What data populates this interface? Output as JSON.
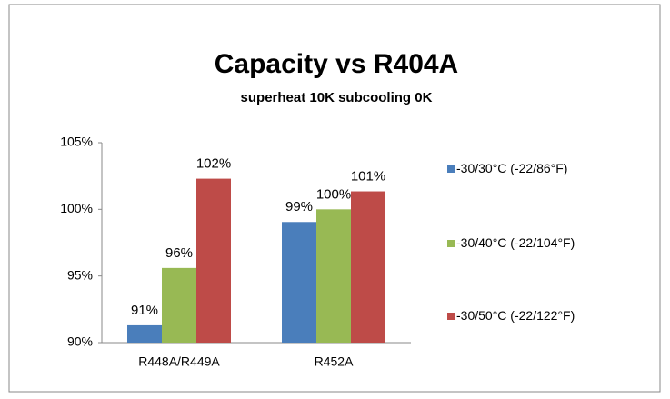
{
  "chart_data": {
    "type": "bar",
    "title": "Capacity vs R404A",
    "subtitle": "superheat 10K subcooling 0K",
    "categories": [
      "R448A/R449A",
      "R452A"
    ],
    "series": [
      {
        "name": "-30/30°C (-22/86°F)",
        "color": "#4a7ebb",
        "values": [
          91.3,
          99.05
        ],
        "value_labels": [
          "91%",
          "99%"
        ]
      },
      {
        "name": "-30/40°C (-22/104°F)",
        "color": "#98b954",
        "values": [
          95.6,
          100
        ],
        "value_labels": [
          "96%",
          "100%"
        ]
      },
      {
        "name": "-30/50°C (-22/122°F)",
        "color": "#be4b48",
        "values": [
          102.3,
          101.35
        ],
        "value_labels": [
          "102%",
          "101%"
        ]
      }
    ],
    "ylim": [
      90,
      105
    ],
    "yticks": [
      {
        "value": 90,
        "label": "90%"
      },
      {
        "value": 95,
        "label": "95%"
      },
      {
        "value": 100,
        "label": "100%"
      },
      {
        "value": 105,
        "label": "105%"
      }
    ],
    "grid": false,
    "legend": "right"
  }
}
